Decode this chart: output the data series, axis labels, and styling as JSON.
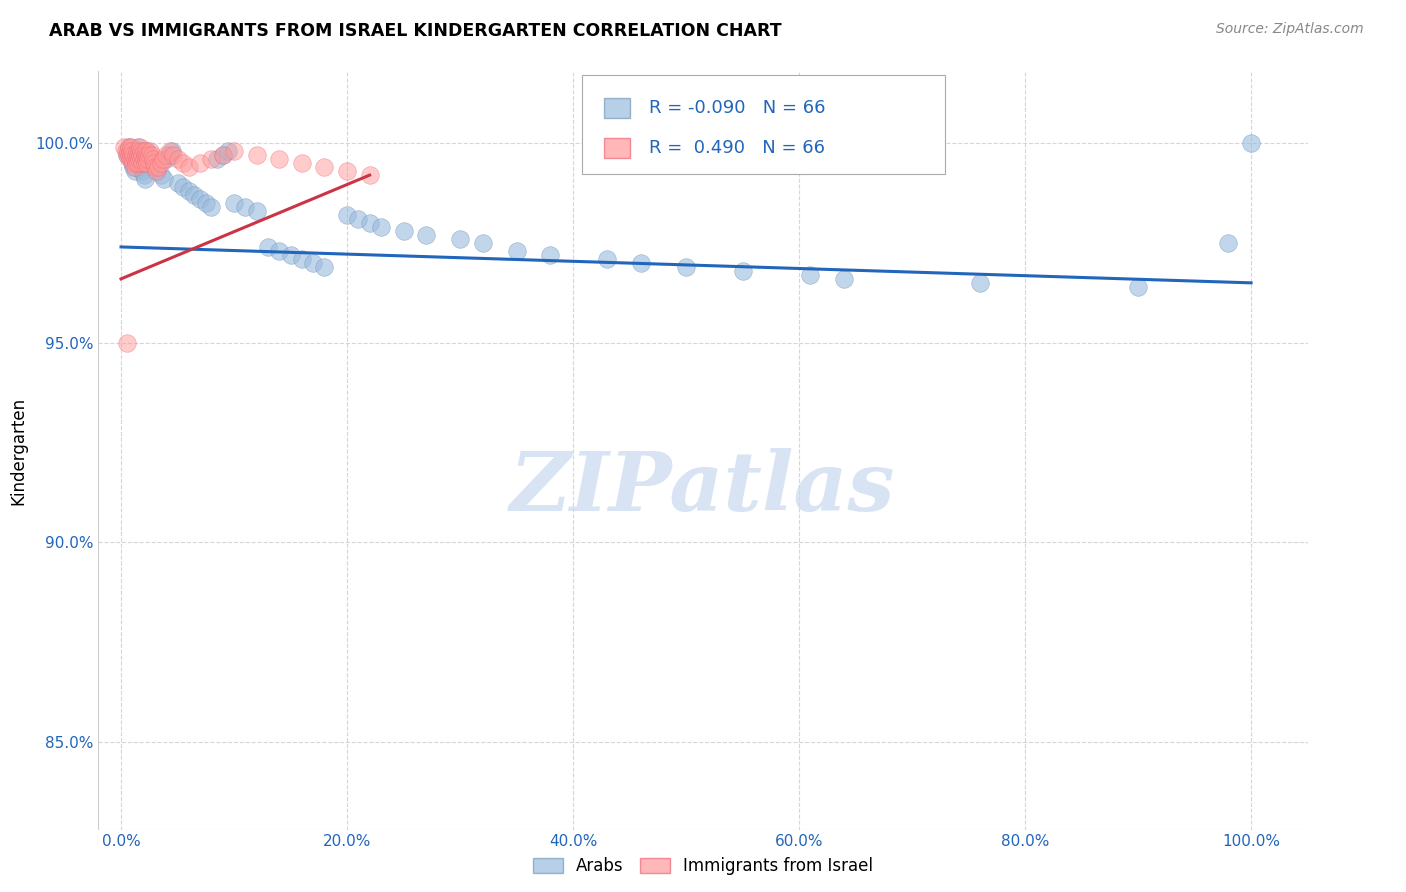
{
  "title": "ARAB VS IMMIGRANTS FROM ISRAEL KINDERGARTEN CORRELATION CHART",
  "source": "Source: ZipAtlas.com",
  "ylabel": "Kindergarten",
  "ytick_labels": [
    "85.0%",
    "90.0%",
    "95.0%",
    "100.0%"
  ],
  "ytick_values": [
    0.85,
    0.9,
    0.95,
    1.0
  ],
  "xtick_labels": [
    "0.0%",
    "20.0%",
    "40.0%",
    "60.0%",
    "80.0%",
    "100.0%"
  ],
  "xtick_values": [
    0.0,
    0.2,
    0.4,
    0.6,
    0.8,
    1.0
  ],
  "xlim": [
    -0.02,
    1.05
  ],
  "ylim": [
    0.828,
    1.018
  ],
  "legend_R_blue": "-0.090",
  "legend_N_blue": "66",
  "legend_R_pink": "0.490",
  "legend_N_pink": "66",
  "blue_color": "#99BBDD",
  "blue_edge_color": "#7799BB",
  "pink_color": "#FF9999",
  "pink_edge_color": "#EE6677",
  "trendline_blue_color": "#2266BB",
  "trendline_pink_color": "#CC3344",
  "legend_text_color": "#2266BB",
  "watermark_color": "#C8D8EE",
  "axis_color": "#2266BB",
  "blue_scatter_x": [
    0.005,
    0.007,
    0.008,
    0.009,
    0.01,
    0.011,
    0.012,
    0.013,
    0.014,
    0.015,
    0.016,
    0.017,
    0.018,
    0.019,
    0.02,
    0.021,
    0.022,
    0.023,
    0.025,
    0.027,
    0.03,
    0.032,
    0.035,
    0.038,
    0.04,
    0.043,
    0.045,
    0.05,
    0.055,
    0.06,
    0.065,
    0.07,
    0.075,
    0.08,
    0.085,
    0.09,
    0.095,
    0.1,
    0.11,
    0.12,
    0.13,
    0.14,
    0.15,
    0.16,
    0.17,
    0.18,
    0.2,
    0.21,
    0.22,
    0.23,
    0.25,
    0.27,
    0.3,
    0.32,
    0.35,
    0.38,
    0.43,
    0.46,
    0.5,
    0.55,
    0.61,
    0.64,
    0.76,
    0.9,
    0.98,
    1.0
  ],
  "blue_scatter_y": [
    0.997,
    0.999,
    0.998,
    0.996,
    0.995,
    0.994,
    0.993,
    0.997,
    0.998,
    0.999,
    0.996,
    0.995,
    0.994,
    0.993,
    0.992,
    0.991,
    0.997,
    0.998,
    0.996,
    0.995,
    0.994,
    0.993,
    0.992,
    0.991,
    0.996,
    0.997,
    0.998,
    0.99,
    0.989,
    0.988,
    0.987,
    0.986,
    0.985,
    0.984,
    0.996,
    0.997,
    0.998,
    0.985,
    0.984,
    0.983,
    0.974,
    0.973,
    0.972,
    0.971,
    0.97,
    0.969,
    0.982,
    0.981,
    0.98,
    0.979,
    0.978,
    0.977,
    0.976,
    0.975,
    0.973,
    0.972,
    0.971,
    0.97,
    0.969,
    0.968,
    0.967,
    0.966,
    0.965,
    0.964,
    0.975,
    1.0
  ],
  "pink_scatter_x": [
    0.003,
    0.004,
    0.005,
    0.006,
    0.007,
    0.007,
    0.008,
    0.008,
    0.009,
    0.009,
    0.01,
    0.01,
    0.011,
    0.011,
    0.012,
    0.012,
    0.013,
    0.013,
    0.014,
    0.014,
    0.015,
    0.015,
    0.016,
    0.016,
    0.017,
    0.017,
    0.018,
    0.018,
    0.019,
    0.019,
    0.02,
    0.02,
    0.021,
    0.021,
    0.022,
    0.022,
    0.023,
    0.023,
    0.024,
    0.025,
    0.026,
    0.027,
    0.028,
    0.029,
    0.03,
    0.031,
    0.033,
    0.035,
    0.037,
    0.04,
    0.043,
    0.046,
    0.05,
    0.055,
    0.06,
    0.07,
    0.08,
    0.09,
    0.1,
    0.12,
    0.14,
    0.16,
    0.18,
    0.2,
    0.22,
    0.005
  ],
  "pink_scatter_y": [
    0.999,
    0.998,
    0.997,
    0.998,
    0.999,
    0.997,
    0.998,
    0.996,
    0.999,
    0.997,
    0.998,
    0.996,
    0.997,
    0.995,
    0.996,
    0.994,
    0.997,
    0.995,
    0.998,
    0.996,
    0.997,
    0.995,
    0.998,
    0.996,
    0.999,
    0.997,
    0.998,
    0.996,
    0.997,
    0.995,
    0.998,
    0.996,
    0.997,
    0.995,
    0.998,
    0.996,
    0.997,
    0.995,
    0.996,
    0.997,
    0.998,
    0.997,
    0.996,
    0.995,
    0.994,
    0.993,
    0.994,
    0.995,
    0.996,
    0.997,
    0.998,
    0.997,
    0.996,
    0.995,
    0.994,
    0.995,
    0.996,
    0.997,
    0.998,
    0.997,
    0.996,
    0.995,
    0.994,
    0.993,
    0.992,
    0.95
  ],
  "blue_trend_x": [
    0.0,
    1.0
  ],
  "blue_trend_y": [
    0.974,
    0.965
  ],
  "pink_trend_x": [
    0.0,
    0.22
  ],
  "pink_trend_y": [
    0.966,
    0.992
  ]
}
